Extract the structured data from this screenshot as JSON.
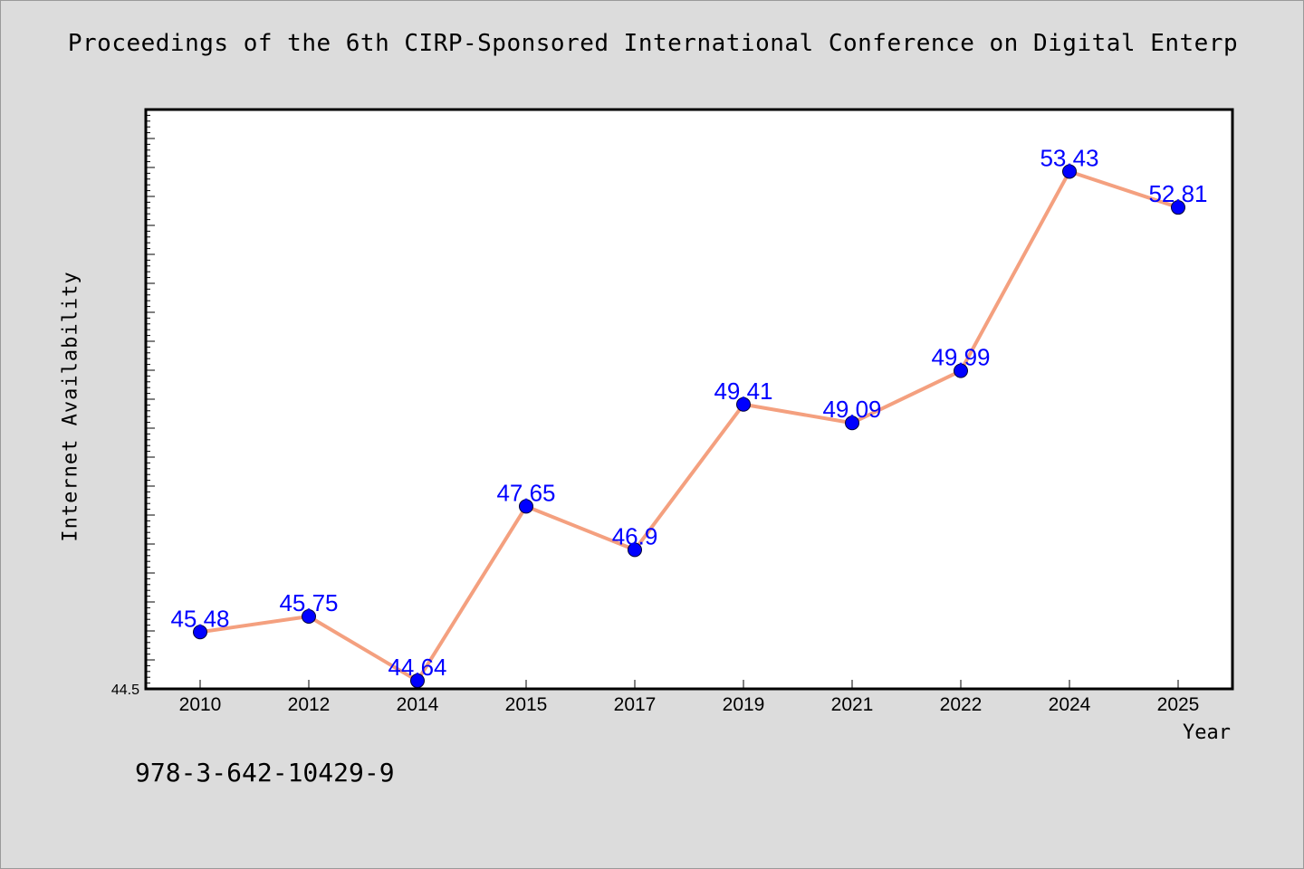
{
  "colors": {
    "background": "#dcdcdc",
    "plot_background": "#ffffff",
    "line": "#f4a07f",
    "marker": "#0000ff",
    "data_label": "#0000ff"
  },
  "footer": {
    "isbn": "978-3-642-10429-9"
  },
  "chart_data": {
    "type": "line",
    "title": "Proceedings of the 6th CIRP-Sponsored International Conference on Digital Enterp",
    "xlabel": "Year",
    "ylabel": "Internet Availability",
    "categories": [
      "2010",
      "2012",
      "2014",
      "2015",
      "2017",
      "2019",
      "2021",
      "2022",
      "2024",
      "2025"
    ],
    "series": [
      {
        "values": [
          45.48,
          45.75,
          44.64,
          47.65,
          46.9,
          49.41,
          49.09,
          49.99,
          53.43,
          52.81
        ]
      }
    ],
    "data_labels": [
      "45.48",
      "45.75",
      "44.64",
      "47.65",
      "46.9",
      "49.41",
      "49.09",
      "49.99",
      "53.43",
      "52.81"
    ],
    "y_tick_labels": [
      "44.5"
    ],
    "ylim": [
      44.5,
      54.5
    ],
    "grid": false,
    "legend": "none"
  }
}
